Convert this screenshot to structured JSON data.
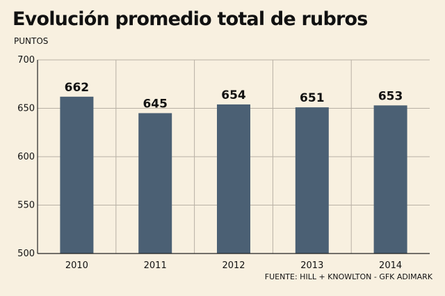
{
  "chart_data": {
    "type": "bar",
    "title": "Evolución promedio total de rubros",
    "ylabel": "PUNTOS",
    "xlabel": "",
    "categories": [
      "2010",
      "2011",
      "2012",
      "2013",
      "2014"
    ],
    "values": [
      662,
      645,
      654,
      651,
      653
    ],
    "data_labels": [
      "662",
      "645",
      "654",
      "651",
      "653"
    ],
    "ylim": [
      500,
      700
    ],
    "yticks": [
      500,
      550,
      600,
      650,
      700
    ],
    "grid": "horizontal and vertical",
    "legend": "none",
    "source": "FUENTE: HILL + KNOWLTON - GFK ADIMARK",
    "colors": {
      "background": "#f8f0e0",
      "bar": "#4b6074",
      "grid": "#b8b0a4",
      "axis": "#222222"
    }
  }
}
